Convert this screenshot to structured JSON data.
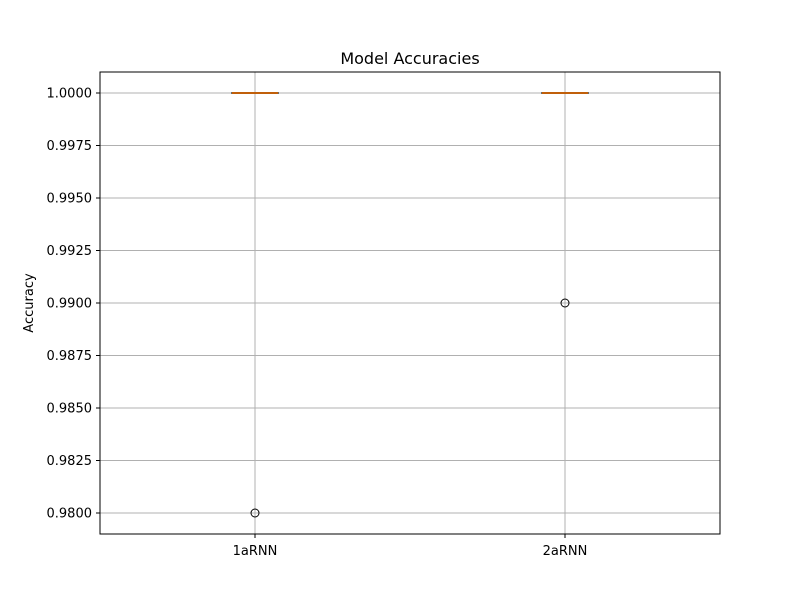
{
  "chart_data": {
    "type": "box",
    "title": "Model Accuracies",
    "xlabel": "",
    "ylabel": "Accuracy",
    "categories": [
      "1aRNN",
      "2aRNN"
    ],
    "boxes": [
      {
        "category": "1aRNN",
        "whisker_low": 1.0,
        "q1": 1.0,
        "median": 1.0,
        "q3": 1.0,
        "whisker_high": 1.0,
        "outliers": [
          0.98
        ]
      },
      {
        "category": "2aRNN",
        "whisker_low": 1.0,
        "q1": 1.0,
        "median": 1.0,
        "q3": 1.0,
        "whisker_high": 1.0,
        "outliers": [
          0.99
        ]
      }
    ],
    "ylim": [
      0.979,
      1.001
    ],
    "yticks": [
      0.98,
      0.9825,
      0.985,
      0.9875,
      0.99,
      0.9925,
      0.995,
      0.9975,
      1.0
    ],
    "ytick_labels": [
      "0.9800",
      "0.9825",
      "0.9850",
      "0.9875",
      "0.9900",
      "0.9925",
      "0.9950",
      "0.9975",
      "1.0000"
    ],
    "grid": true,
    "colors": {
      "box": "#000000",
      "median": "#ff7f0e",
      "grid": "#b0b0b0",
      "outlier_edge": "#000000"
    }
  }
}
